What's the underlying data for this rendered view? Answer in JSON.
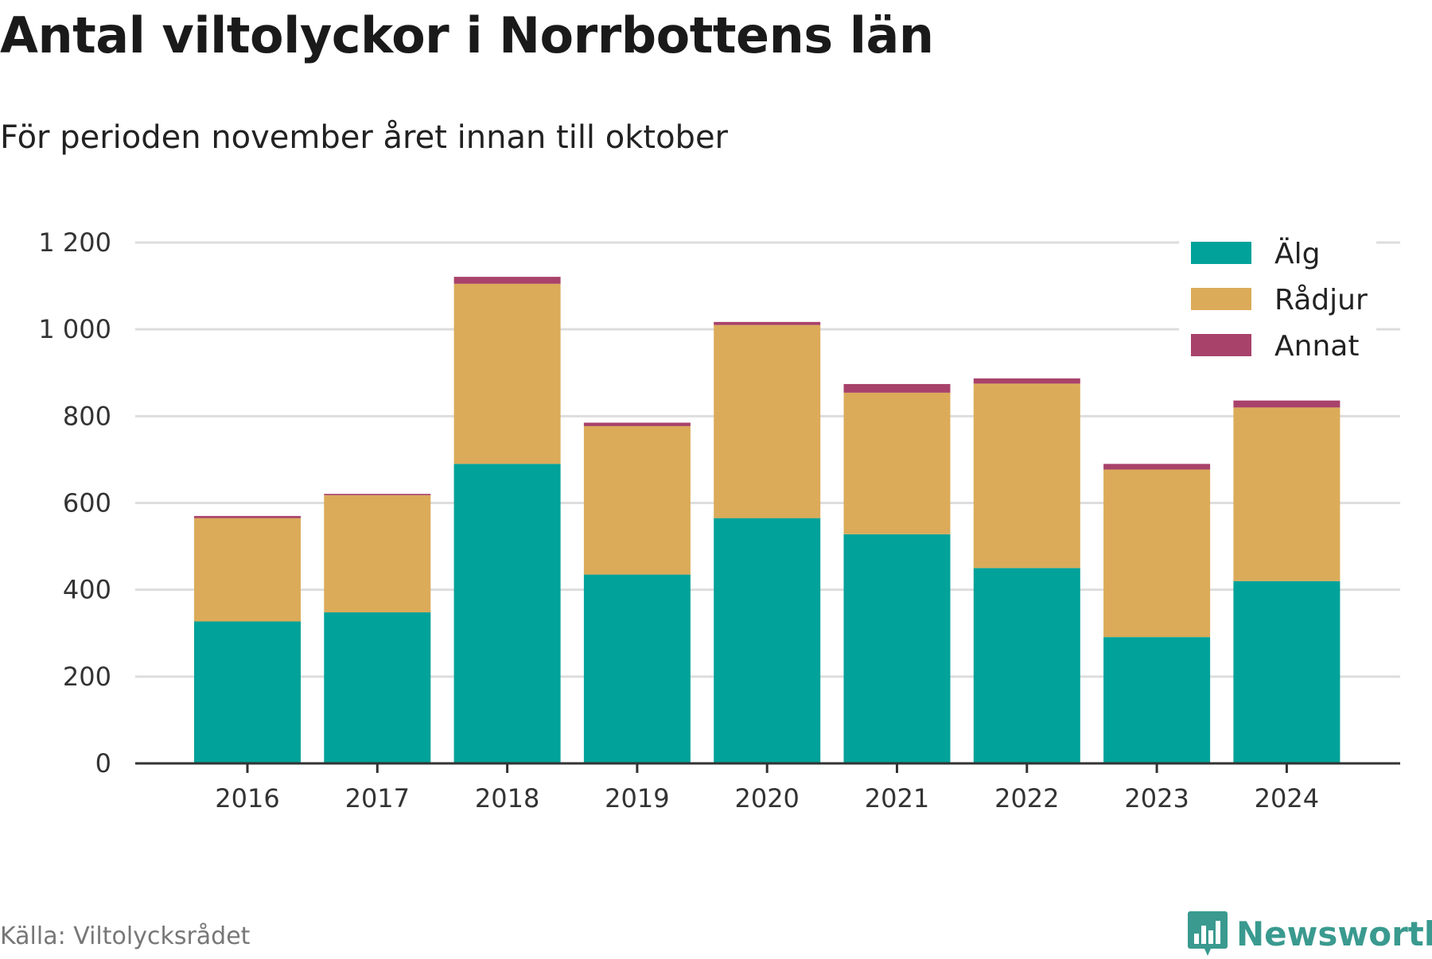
{
  "title": "Antal viltolyckor i Norrbottens län",
  "subtitle": "För perioden november året innan till oktober",
  "source": "Källa: Viltolycksrådet",
  "brand": {
    "name": "Newsworthy",
    "color": "#3a9a8f",
    "icon": "newsworthy-logo-icon"
  },
  "chart_data": {
    "type": "bar",
    "stacked": true,
    "categories": [
      "2016",
      "2017",
      "2018",
      "2019",
      "2020",
      "2021",
      "2022",
      "2023",
      "2024"
    ],
    "series": [
      {
        "name": "Älg",
        "color": "#00a29a",
        "values": [
          327,
          348,
          690,
          435,
          565,
          528,
          450,
          291,
          420
        ]
      },
      {
        "name": "Rådjur",
        "color": "#dbab59",
        "values": [
          238,
          270,
          415,
          342,
          445,
          326,
          425,
          386,
          400
        ]
      },
      {
        "name": "Annat",
        "color": "#a8426a",
        "values": [
          5,
          3,
          16,
          8,
          7,
          20,
          12,
          13,
          16
        ]
      }
    ],
    "ylim": [
      0,
      1200
    ],
    "yticks": [
      0,
      200,
      400,
      600,
      800,
      1000,
      1200
    ],
    "ytick_labels": [
      "0",
      "200",
      "400",
      "600",
      "800",
      "1 000",
      "1 200"
    ],
    "grid": true,
    "legend_position": "top-right"
  }
}
